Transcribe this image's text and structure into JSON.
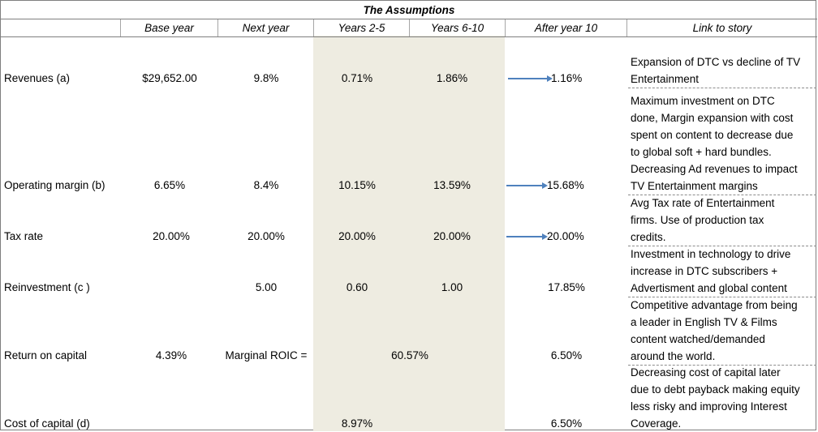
{
  "title": "The Assumptions",
  "headers": [
    "Base year",
    "Next year",
    "Years 2-5",
    "Years 6-10",
    "After year 10",
    "Link to story"
  ],
  "rows": [
    {
      "label": "Revenues (a)",
      "base": "$29,652.00",
      "next": "9.8%",
      "y25": "0.71%",
      "y610": "1.86%",
      "after": "1.16%",
      "arrow": true
    },
    {
      "label": "Operating margin (b)",
      "base": "6.65%",
      "next": "8.4%",
      "y25": "10.15%",
      "y610": "13.59%",
      "after": "15.68%",
      "arrow": true
    },
    {
      "label": "Tax rate",
      "base": "20.00%",
      "next": "20.00%",
      "y25": "20.00%",
      "y610": "20.00%",
      "after": "20.00%",
      "arrow": true
    },
    {
      "label": "Reinvestment (c )",
      "base": "",
      "next": "5.00",
      "y25": "0.60",
      "y610": "1.00",
      "after": "17.85%",
      "arrow": false
    },
    {
      "label": "Return on capital",
      "base": "4.39%",
      "next": "Marginal ROIC =",
      "mid": "60.57%",
      "after": "6.50%",
      "arrow": false
    },
    {
      "label": "Cost of capital (d)",
      "base": "",
      "next": "",
      "y25": "8.97%",
      "y610": "",
      "after": "6.50%",
      "arrow": false
    }
  ],
  "story": [
    [
      "Expansion of DTC vs decline of TV",
      "Entertainment"
    ],
    [
      "Maximum investment on DTC",
      "done, Margin expansion with cost",
      "spent on content to decrease due",
      "to global soft + hard bundles.",
      "Decreasing Ad revenues to impact",
      "TV Entertainment margins"
    ],
    [
      "Avg Tax rate of Entertainment",
      "firms. Use of production tax",
      "credits."
    ],
    [
      "Investment in technology to drive",
      "increase in DTC subscribers +",
      "Advertisment and global content"
    ],
    [
      "Competitive advantage from being",
      "a leader in English TV & Films",
      "content watched/demanded",
      "around the world."
    ],
    [
      "Decreasing cost of capital later",
      "due to debt payback making equity",
      "less risky and improving Interest",
      "Coverage."
    ]
  ],
  "colors": {
    "shade": "#eeece1",
    "arrow": "#4f81bd",
    "border": "#7f7f7f"
  }
}
